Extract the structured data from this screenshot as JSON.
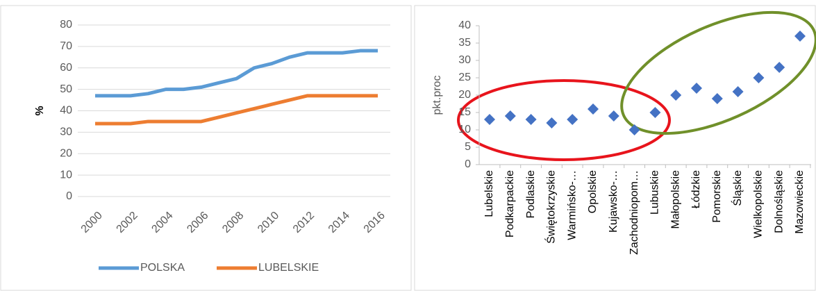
{
  "chart_data": [
    {
      "type": "line",
      "categories": [
        "2000",
        null,
        "2002",
        null,
        "2004",
        null,
        "2006",
        null,
        "2008",
        null,
        "2010",
        null,
        "2012",
        null,
        "2014",
        null,
        "2016"
      ],
      "series": [
        {
          "name": "POLSKA",
          "color": "#5b9bd5",
          "values": [
            47,
            47,
            47,
            48,
            50,
            50,
            51,
            53,
            55,
            60,
            62,
            65,
            67,
            67,
            67,
            68,
            68
          ]
        },
        {
          "name": "LUBELSKIE",
          "color": "#ed7d31",
          "values": [
            34,
            34,
            34,
            35,
            35,
            35,
            35,
            37,
            39,
            41,
            43,
            45,
            47,
            47,
            47,
            47,
            47
          ]
        }
      ],
      "ylabel": "%",
      "ylim": [
        0,
        80
      ],
      "yticks": [
        0,
        10,
        20,
        30,
        40,
        50,
        60,
        70,
        80
      ],
      "grid": true,
      "legend": "bottom"
    },
    {
      "type": "scatter",
      "categories": [
        "Lubelskie",
        "Podkarpackie",
        "Podlaskie",
        "Świętokrzyskie",
        "Warmińsko-…",
        "Opolskie",
        "Kujawsko-…",
        "Zachodniopom…",
        "Lubuskie",
        "Małopolskie",
        "Łódzkie",
        "Pomorskie",
        "Śląskie",
        "Wielkopolskie",
        "Dolnośląskie",
        "Mazowieckie"
      ],
      "values": [
        13,
        14,
        13,
        12,
        13,
        16,
        14,
        10,
        15,
        20,
        22,
        19,
        21,
        25,
        28,
        37
      ],
      "color": "#4472c4",
      "ylabel": "pkt.proc",
      "ylim": [
        0,
        40
      ],
      "yticks": [
        0,
        5,
        10,
        15,
        20,
        25,
        30,
        35,
        40
      ],
      "grid": true
    }
  ]
}
